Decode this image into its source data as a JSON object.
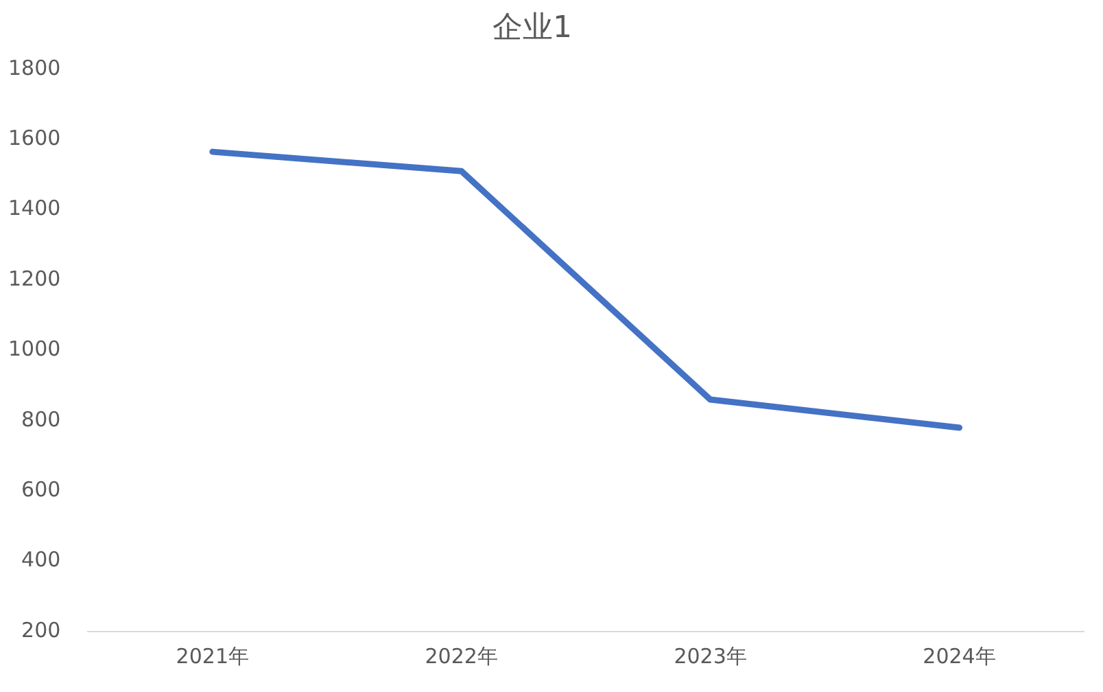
{
  "chart_data": {
    "type": "line",
    "title": "企业1",
    "categories": [
      "2021年",
      "2022年",
      "2023年",
      "2024年"
    ],
    "series": [
      {
        "color": "#4472c4",
        "values": [
          1565,
          1510,
          860,
          780
        ]
      }
    ],
    "ylim": [
      200,
      1800
    ],
    "yticks": [
      1800,
      1600,
      1400,
      1200,
      1000,
      800,
      600,
      400,
      200
    ],
    "grid": false,
    "legend": false,
    "marker": "none",
    "line_style": "solid"
  }
}
